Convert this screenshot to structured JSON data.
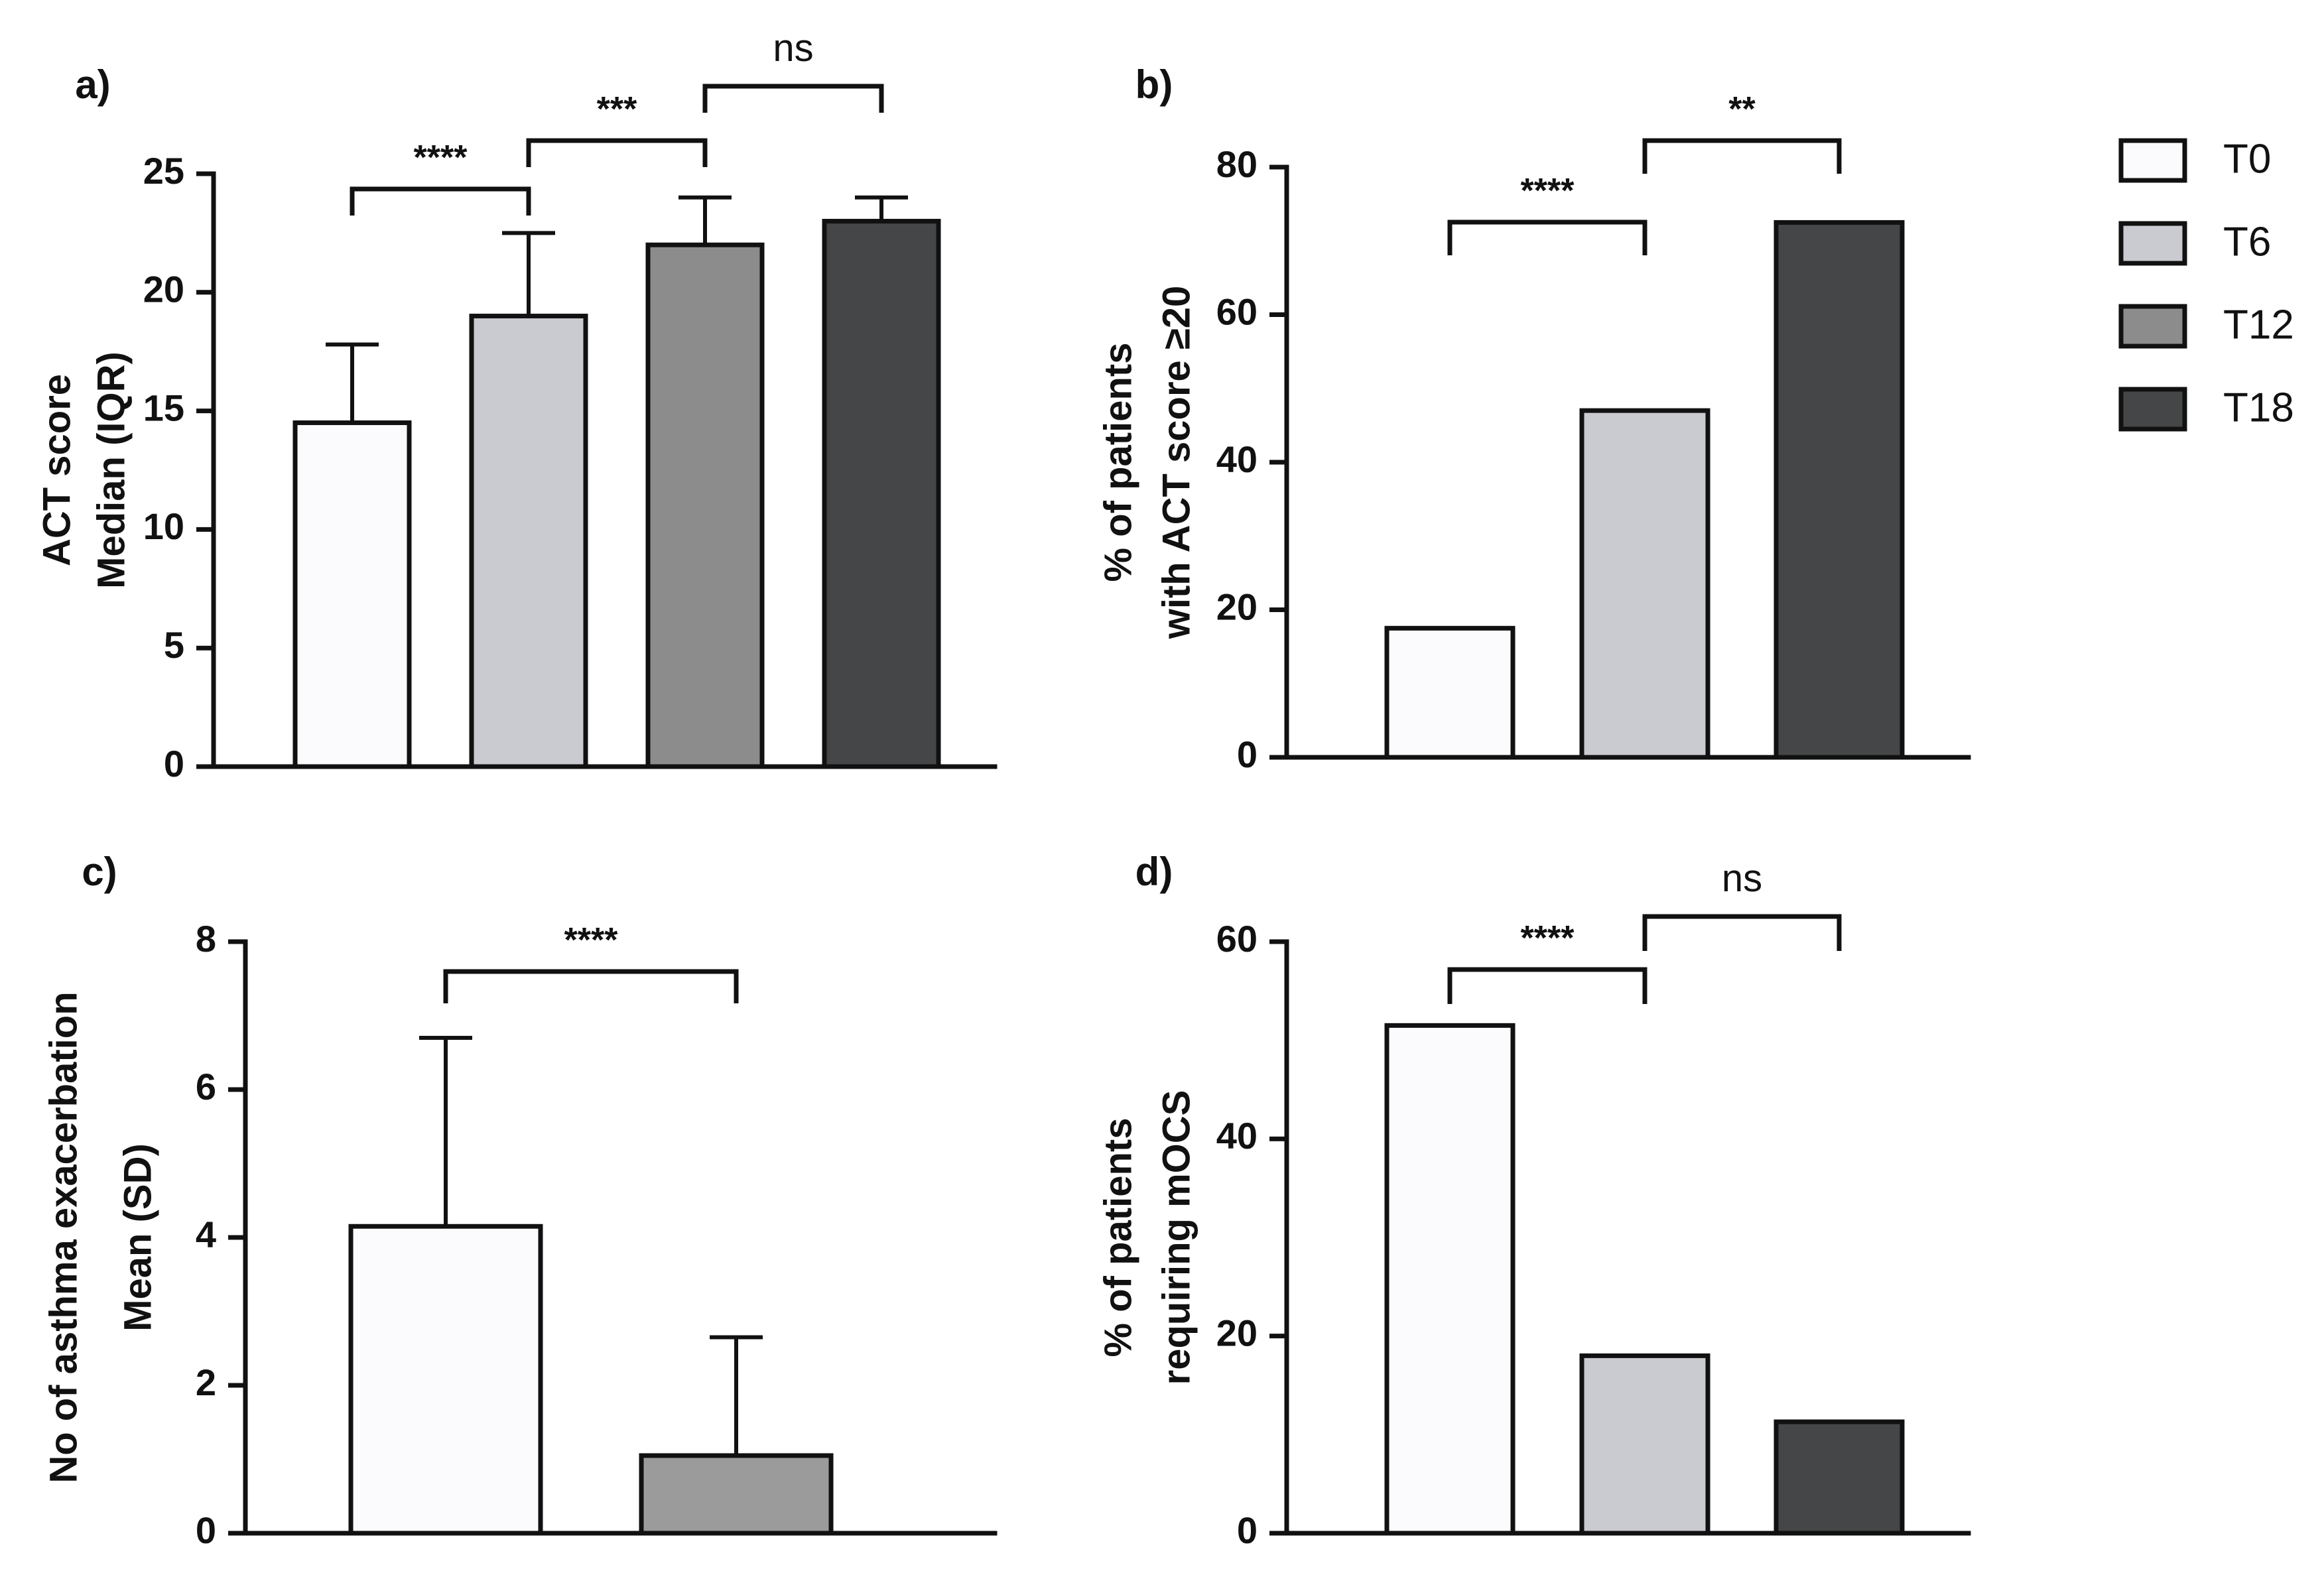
{
  "colors": {
    "T0": "#fbfafc",
    "T6": "#cacbd0",
    "T12": "#8c8c8c",
    "T18": "#454647",
    "T12_panel_c": "#9b9b9c"
  },
  "legend": {
    "entries": [
      {
        "label": "T0",
        "color": "#fbfafc"
      },
      {
        "label": "T6",
        "color": "#cacbd0"
      },
      {
        "label": "T12",
        "color": "#8c8c8c"
      },
      {
        "label": "T18",
        "color": "#454647"
      }
    ]
  },
  "chart_data": [
    {
      "panel": "a)",
      "type": "bar",
      "ylabel_lines": [
        "ACT score",
        "Median (IQR)"
      ],
      "ylim": [
        0,
        25
      ],
      "yticks": [
        0,
        5,
        10,
        15,
        20,
        25
      ],
      "categories": [
        "T0",
        "T6",
        "T12",
        "T18"
      ],
      "values": [
        14.5,
        19,
        22,
        23
      ],
      "error_upper": [
        17.8,
        22.5,
        24,
        24
      ],
      "significance": [
        {
          "from": 0,
          "to": 1,
          "label": "****"
        },
        {
          "from": 1,
          "to": 2,
          "label": "***"
        },
        {
          "from": 2,
          "to": 3,
          "label": "ns"
        }
      ]
    },
    {
      "panel": "b)",
      "type": "bar",
      "ylabel_lines": [
        "% of patients",
        "with ACT score ≥20"
      ],
      "ylim": [
        0,
        80
      ],
      "yticks": [
        0,
        20,
        40,
        60,
        80
      ],
      "categories": [
        "T0",
        "T6",
        "T18"
      ],
      "values": [
        17.5,
        47,
        72.5
      ],
      "significance": [
        {
          "from": 0,
          "to": 1,
          "label": "****"
        },
        {
          "from": 1,
          "to": 2,
          "label": "**"
        }
      ]
    },
    {
      "panel": "c)",
      "type": "bar",
      "ylabel_lines": [
        "No of asthma exacerbation",
        "Mean (SD)"
      ],
      "ylim": [
        0,
        8
      ],
      "yticks": [
        0,
        2,
        4,
        6,
        8
      ],
      "categories": [
        "T0",
        "T12"
      ],
      "values": [
        4.15,
        1.05
      ],
      "error_upper": [
        6.7,
        2.65
      ],
      "significance": [
        {
          "from": 0,
          "to": 1,
          "label": "****"
        }
      ]
    },
    {
      "panel": "d)",
      "type": "bar",
      "ylabel_lines": [
        "% of patients",
        "requiring mOCS"
      ],
      "ylim": [
        0,
        60
      ],
      "yticks": [
        0,
        20,
        40,
        60
      ],
      "categories": [
        "T0",
        "T6",
        "T18"
      ],
      "values": [
        51.5,
        18,
        11.3
      ],
      "significance": [
        {
          "from": 0,
          "to": 1,
          "label": "****"
        },
        {
          "from": 1,
          "to": 2,
          "label": "ns"
        }
      ]
    }
  ]
}
